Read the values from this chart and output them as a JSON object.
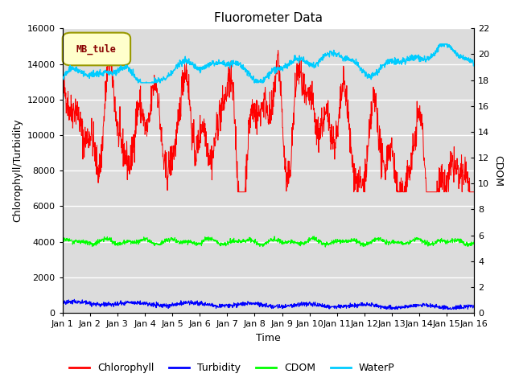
{
  "title": "Fluorometer Data",
  "xlabel": "Time",
  "ylabel_left": "Chlorophyll/Turbidity",
  "ylabel_right": "CDOM",
  "legend_label": "MB_tule",
  "x_start": 0,
  "x_end": 15,
  "x_ticks": [
    0,
    1,
    2,
    3,
    4,
    5,
    6,
    7,
    8,
    9,
    10,
    11,
    12,
    13,
    14,
    15
  ],
  "x_tick_labels": [
    "Jan 1",
    "Jan 2",
    "Jan 3",
    "Jan 4",
    "Jan 5",
    "Jan 6",
    "Jan 7",
    "Jan 8",
    "Jan 9",
    "Jan 10",
    "Jan 11",
    "Jan 12",
    "Jan 13",
    "Jan 14",
    "Jan 15",
    "Jan 16"
  ],
  "ylim_left": [
    0,
    16000
  ],
  "ylim_right": [
    0,
    22
  ],
  "yticks_left": [
    0,
    2000,
    4000,
    6000,
    8000,
    10000,
    12000,
    14000,
    16000
  ],
  "yticks_right": [
    0,
    2,
    4,
    6,
    8,
    10,
    12,
    14,
    16,
    18,
    20,
    22
  ],
  "colors": {
    "chlorophyll": "#ff0000",
    "turbidity": "#0000ff",
    "cdom": "#00ff00",
    "waterp": "#00ccff",
    "background": "#dcdcdc",
    "legend_box_bg": "#ffffcc",
    "legend_box_border": "#999900",
    "grid": "#ffffff"
  },
  "seed": 42,
  "n_points": 1500
}
